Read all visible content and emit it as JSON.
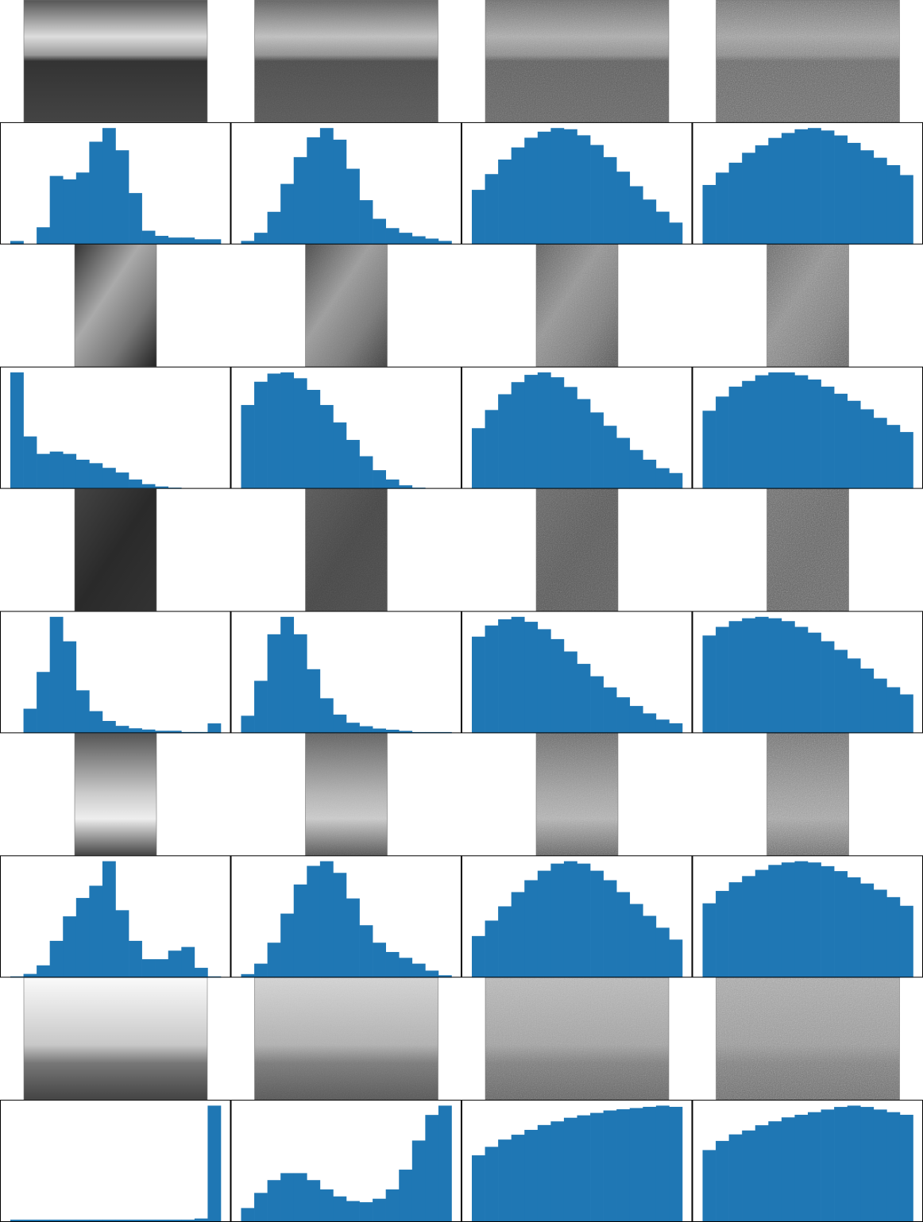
{
  "chart_data": [
    {
      "type": "histogram",
      "bins": [
        0,
        16,
        32,
        48,
        64,
        80,
        96,
        112,
        128,
        144,
        160,
        176,
        192,
        208,
        224,
        240,
        256
      ],
      "values": [
        2,
        0,
        10,
        40,
        38,
        42,
        60,
        68,
        55,
        30,
        8,
        5,
        4,
        4,
        3,
        3
      ],
      "color": "#1f77b4"
    },
    {
      "type": "histogram",
      "bins": [
        0,
        16,
        32,
        48,
        64,
        80,
        96,
        112,
        128,
        144,
        160,
        176,
        192,
        208,
        224,
        240,
        256
      ],
      "values": [
        3,
        10,
        28,
        52,
        75,
        92,
        100,
        90,
        65,
        38,
        22,
        14,
        10,
        7,
        5,
        3
      ],
      "color": "#1f77b4"
    },
    {
      "type": "histogram",
      "bins": [
        0,
        16,
        32,
        48,
        64,
        80,
        96,
        112,
        128,
        144,
        160,
        176,
        192,
        208,
        224,
        240,
        256
      ],
      "values": [
        45,
        58,
        70,
        80,
        88,
        93,
        96,
        95,
        90,
        82,
        72,
        60,
        48,
        37,
        27,
        18
      ],
      "color": "#1f77b4"
    },
    {
      "type": "histogram",
      "bins": [
        0,
        16,
        32,
        48,
        64,
        80,
        96,
        112,
        128,
        144,
        160,
        176,
        192,
        208,
        224,
        240,
        256
      ],
      "values": [
        48,
        58,
        66,
        74,
        80,
        86,
        90,
        93,
        94,
        92,
        88,
        82,
        76,
        70,
        64,
        56
      ],
      "color": "#1f77b4"
    },
    {
      "type": "histogram",
      "bins": [
        0,
        16,
        32,
        48,
        64,
        80,
        96,
        112,
        128,
        144,
        160,
        176,
        192,
        208,
        224,
        240,
        256
      ],
      "values": [
        100,
        45,
        30,
        32,
        30,
        25,
        22,
        18,
        14,
        8,
        4,
        2,
        1,
        0,
        0,
        0
      ],
      "color": "#1f77b4"
    },
    {
      "type": "histogram",
      "bins": [
        0,
        16,
        32,
        48,
        64,
        80,
        96,
        112,
        128,
        144,
        160,
        176,
        192,
        208,
        224,
        240,
        256
      ],
      "values": [
        72,
        92,
        99,
        100,
        95,
        85,
        72,
        57,
        42,
        28,
        16,
        8,
        3,
        1,
        0,
        0
      ],
      "color": "#1f77b4"
    },
    {
      "type": "histogram",
      "bins": [
        0,
        16,
        32,
        48,
        64,
        80,
        96,
        112,
        128,
        144,
        160,
        176,
        192,
        208,
        224,
        240,
        256
      ],
      "values": [
        50,
        65,
        78,
        88,
        94,
        96,
        92,
        84,
        74,
        63,
        52,
        42,
        32,
        24,
        17,
        13
      ],
      "color": "#1f77b4"
    },
    {
      "type": "histogram",
      "bins": [
        0,
        16,
        32,
        48,
        64,
        80,
        96,
        112,
        128,
        144,
        160,
        176,
        192,
        208,
        224,
        240,
        256
      ],
      "values": [
        55,
        65,
        72,
        76,
        80,
        82,
        82,
        80,
        77,
        72,
        67,
        62,
        56,
        50,
        45,
        40
      ],
      "color": "#1f77b4"
    },
    {
      "type": "histogram",
      "bins": [
        0,
        16,
        32,
        48,
        64,
        80,
        96,
        112,
        128,
        144,
        160,
        176,
        192,
        208,
        224,
        240,
        256
      ],
      "values": [
        0,
        20,
        50,
        95,
        75,
        35,
        18,
        10,
        6,
        4,
        3,
        2,
        2,
        1,
        1,
        8
      ],
      "color": "#1f77b4"
    },
    {
      "type": "histogram",
      "bins": [
        0,
        16,
        32,
        48,
        64,
        80,
        96,
        112,
        128,
        144,
        160,
        176,
        192,
        208,
        224,
        240,
        256
      ],
      "values": [
        15,
        45,
        85,
        100,
        85,
        55,
        30,
        16,
        9,
        6,
        4,
        3,
        2,
        1,
        1,
        1
      ],
      "color": "#1f77b4"
    },
    {
      "type": "histogram",
      "bins": [
        0,
        16,
        32,
        48,
        64,
        80,
        96,
        112,
        128,
        144,
        160,
        176,
        192,
        208,
        224,
        240,
        256
      ],
      "values": [
        78,
        87,
        92,
        94,
        90,
        84,
        76,
        66,
        56,
        46,
        37,
        29,
        22,
        16,
        11,
        8
      ],
      "color": "#1f77b4"
    },
    {
      "type": "histogram",
      "bins": [
        0,
        16,
        32,
        48,
        64,
        80,
        96,
        112,
        128,
        144,
        160,
        176,
        192,
        208,
        224,
        240,
        256
      ],
      "values": [
        68,
        74,
        78,
        80,
        81,
        80,
        78,
        74,
        70,
        64,
        58,
        52,
        45,
        38,
        32,
        27
      ],
      "color": "#1f77b4"
    },
    {
      "type": "histogram",
      "bins": [
        0,
        16,
        32,
        48,
        64,
        80,
        96,
        112,
        128,
        144,
        160,
        176,
        192,
        208,
        224,
        240,
        256
      ],
      "values": [
        1,
        3,
        10,
        30,
        50,
        65,
        75,
        95,
        55,
        30,
        15,
        15,
        22,
        25,
        8,
        1
      ],
      "color": "#1f77b4"
    },
    {
      "type": "histogram",
      "bins": [
        0,
        16,
        32,
        48,
        64,
        80,
        96,
        112,
        128,
        144,
        160,
        176,
        192,
        208,
        224,
        240,
        256
      ],
      "values": [
        3,
        12,
        30,
        55,
        80,
        96,
        100,
        90,
        68,
        45,
        30,
        22,
        17,
        12,
        6,
        2
      ],
      "color": "#1f77b4"
    },
    {
      "type": "histogram",
      "bins": [
        0,
        16,
        32,
        48,
        64,
        80,
        96,
        112,
        128,
        144,
        160,
        176,
        192,
        208,
        224,
        240,
        256
      ],
      "values": [
        35,
        48,
        60,
        72,
        82,
        90,
        96,
        98,
        96,
        90,
        82,
        72,
        62,
        52,
        42,
        32
      ],
      "color": "#1f77b4"
    },
    {
      "type": "histogram",
      "bins": [
        0,
        16,
        32,
        48,
        64,
        80,
        96,
        112,
        128,
        144,
        160,
        176,
        192,
        208,
        224,
        240,
        256
      ],
      "values": [
        60,
        70,
        77,
        82,
        87,
        91,
        93,
        94,
        93,
        90,
        86,
        81,
        76,
        71,
        65,
        58
      ],
      "color": "#1f77b4"
    },
    {
      "type": "histogram",
      "bins": [
        0,
        16,
        32,
        48,
        64,
        80,
        96,
        112,
        128,
        144,
        160,
        176,
        192,
        208,
        224,
        240,
        256
      ],
      "values": [
        2,
        2,
        2,
        2,
        2,
        2,
        2,
        2,
        2,
        2,
        2,
        2,
        2,
        2,
        3,
        100
      ],
      "color": "#1f77b4"
    },
    {
      "type": "histogram",
      "bins": [
        0,
        16,
        32,
        48,
        64,
        80,
        96,
        112,
        128,
        144,
        160,
        176,
        192,
        208,
        224,
        240,
        256
      ],
      "values": [
        12,
        25,
        36,
        42,
        42,
        36,
        28,
        22,
        18,
        17,
        20,
        28,
        45,
        70,
        92,
        100
      ],
      "color": "#1f77b4"
    },
    {
      "type": "histogram",
      "bins": [
        0,
        16,
        32,
        48,
        64,
        80,
        96,
        112,
        128,
        144,
        160,
        176,
        192,
        208,
        224,
        240,
        256
      ],
      "values": [
        55,
        62,
        68,
        72,
        76,
        80,
        83,
        86,
        88,
        90,
        92,
        93,
        94,
        95,
        96,
        95
      ],
      "color": "#1f77b4"
    },
    {
      "type": "histogram",
      "bins": [
        0,
        16,
        32,
        48,
        64,
        80,
        96,
        112,
        128,
        144,
        160,
        176,
        192,
        208,
        224,
        240,
        256
      ],
      "values": [
        55,
        62,
        67,
        70,
        74,
        77,
        80,
        82,
        84,
        86,
        88,
        89,
        88,
        86,
        84,
        82
      ],
      "color": "#1f77b4"
    }
  ]
}
